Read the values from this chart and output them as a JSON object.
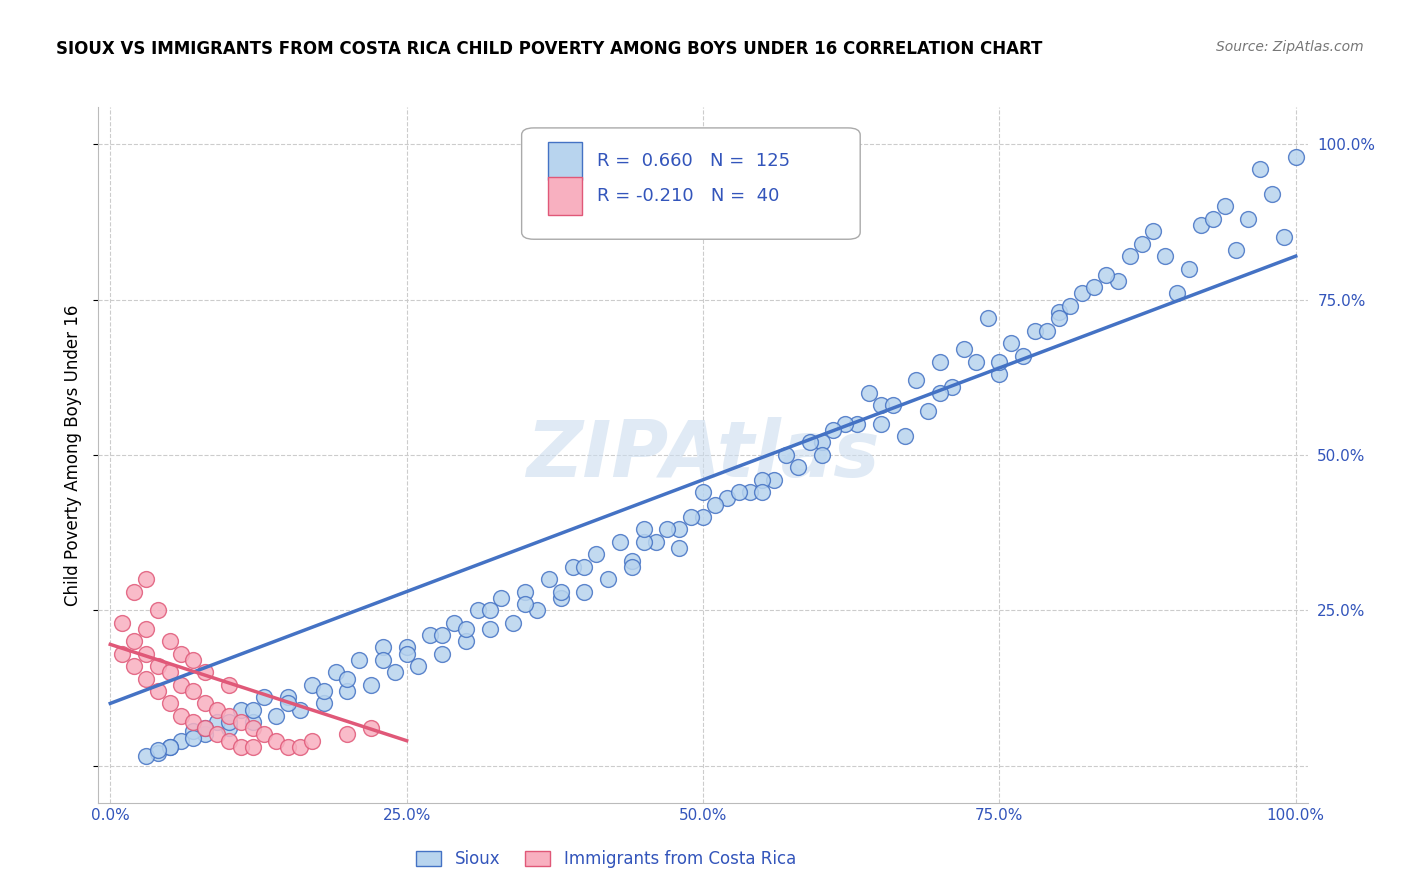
{
  "title": "SIOUX VS IMMIGRANTS FROM COSTA RICA CHILD POVERTY AMONG BOYS UNDER 16 CORRELATION CHART",
  "source": "Source: ZipAtlas.com",
  "ylabel": "Child Poverty Among Boys Under 16",
  "watermark": "ZIPAtlas",
  "sioux_R": 0.66,
  "sioux_N": 125,
  "costa_rica_R": -0.21,
  "costa_rica_N": 40,
  "sioux_color": "#b8d4ee",
  "costa_rica_color": "#f8b0c0",
  "sioux_line_color": "#4472c4",
  "costa_rica_line_color": "#e05878",
  "legend_label_sioux": "Sioux",
  "legend_label_costa_rica": "Immigrants from Costa Rica",
  "sioux_line_x0": 0.0,
  "sioux_line_y0": 0.1,
  "sioux_line_x1": 1.0,
  "sioux_line_y1": 0.82,
  "costa_line_x0": 0.0,
  "costa_line_y0": 0.195,
  "costa_line_x1": 0.25,
  "costa_line_y1": 0.04,
  "sioux_x": [
    0.96,
    0.97,
    0.98,
    0.99,
    1.0,
    0.95,
    0.94,
    0.91,
    0.92,
    0.89,
    0.85,
    0.87,
    0.82,
    0.8,
    0.78,
    0.76,
    0.74,
    0.72,
    0.7,
    0.68,
    0.65,
    0.63,
    0.6,
    0.58,
    0.56,
    0.54,
    0.52,
    0.5,
    0.48,
    0.46,
    0.44,
    0.42,
    0.4,
    0.38,
    0.36,
    0.34,
    0.32,
    0.3,
    0.28,
    0.26,
    0.24,
    0.22,
    0.2,
    0.18,
    0.16,
    0.14,
    0.12,
    0.1,
    0.08,
    0.06,
    0.05,
    0.04,
    0.03,
    0.62,
    0.64,
    0.66,
    0.55,
    0.57,
    0.59,
    0.61,
    0.45,
    0.47,
    0.49,
    0.51,
    0.53,
    0.35,
    0.37,
    0.39,
    0.41,
    0.43,
    0.25,
    0.27,
    0.29,
    0.31,
    0.33,
    0.15,
    0.17,
    0.19,
    0.21,
    0.23,
    0.07,
    0.09,
    0.11,
    0.13,
    0.75,
    0.77,
    0.79,
    0.81,
    0.83,
    0.84,
    0.86,
    0.88,
    0.9,
    0.93,
    0.71,
    0.69,
    0.67,
    0.73,
    0.48,
    0.44,
    0.38,
    0.3,
    0.23,
    0.18,
    0.12,
    0.08,
    0.05,
    0.55,
    0.6,
    0.65,
    0.7,
    0.75,
    0.8,
    0.35,
    0.4,
    0.45,
    0.5,
    0.25,
    0.28,
    0.32,
    0.15,
    0.2,
    0.1,
    0.07,
    0.04
  ],
  "sioux_y": [
    0.88,
    0.96,
    0.92,
    0.85,
    0.98,
    0.83,
    0.9,
    0.8,
    0.87,
    0.82,
    0.78,
    0.84,
    0.76,
    0.73,
    0.7,
    0.68,
    0.72,
    0.67,
    0.65,
    0.62,
    0.58,
    0.55,
    0.52,
    0.48,
    0.46,
    0.44,
    0.43,
    0.4,
    0.38,
    0.36,
    0.33,
    0.3,
    0.28,
    0.27,
    0.25,
    0.23,
    0.22,
    0.2,
    0.18,
    0.16,
    0.15,
    0.13,
    0.12,
    0.1,
    0.09,
    0.08,
    0.07,
    0.06,
    0.05,
    0.04,
    0.03,
    0.02,
    0.015,
    0.55,
    0.6,
    0.58,
    0.46,
    0.5,
    0.52,
    0.54,
    0.36,
    0.38,
    0.4,
    0.42,
    0.44,
    0.28,
    0.3,
    0.32,
    0.34,
    0.36,
    0.19,
    0.21,
    0.23,
    0.25,
    0.27,
    0.11,
    0.13,
    0.15,
    0.17,
    0.19,
    0.055,
    0.07,
    0.09,
    0.11,
    0.63,
    0.66,
    0.7,
    0.74,
    0.77,
    0.79,
    0.82,
    0.86,
    0.76,
    0.88,
    0.61,
    0.57,
    0.53,
    0.65,
    0.35,
    0.32,
    0.28,
    0.22,
    0.17,
    0.12,
    0.09,
    0.06,
    0.03,
    0.44,
    0.5,
    0.55,
    0.6,
    0.65,
    0.72,
    0.26,
    0.32,
    0.38,
    0.44,
    0.18,
    0.21,
    0.25,
    0.1,
    0.14,
    0.07,
    0.045,
    0.025
  ],
  "costa_rica_x": [
    0.01,
    0.01,
    0.02,
    0.02,
    0.02,
    0.03,
    0.03,
    0.03,
    0.03,
    0.04,
    0.04,
    0.04,
    0.05,
    0.05,
    0.05,
    0.06,
    0.06,
    0.06,
    0.07,
    0.07,
    0.07,
    0.08,
    0.08,
    0.08,
    0.09,
    0.09,
    0.1,
    0.1,
    0.1,
    0.11,
    0.11,
    0.12,
    0.12,
    0.13,
    0.14,
    0.15,
    0.16,
    0.17,
    0.2,
    0.22
  ],
  "costa_rica_y": [
    0.18,
    0.23,
    0.16,
    0.2,
    0.28,
    0.14,
    0.18,
    0.22,
    0.3,
    0.12,
    0.16,
    0.25,
    0.1,
    0.15,
    0.2,
    0.08,
    0.13,
    0.18,
    0.07,
    0.12,
    0.17,
    0.06,
    0.1,
    0.15,
    0.05,
    0.09,
    0.04,
    0.08,
    0.13,
    0.03,
    0.07,
    0.03,
    0.06,
    0.05,
    0.04,
    0.03,
    0.03,
    0.04,
    0.05,
    0.06
  ],
  "xlim": [
    -0.01,
    1.01
  ],
  "ylim": [
    -0.06,
    1.06
  ]
}
